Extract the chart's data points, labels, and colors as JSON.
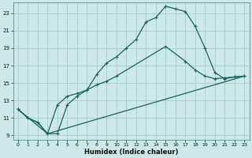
{
  "xlabel": "Humidex (Indice chaleur)",
  "bg_color": "#cce8e8",
  "grid_color": "#aacccc",
  "line_color": "#1a6060",
  "xlim": [
    -0.5,
    23.5
  ],
  "ylim": [
    8.5,
    24.2
  ],
  "yticks": [
    9,
    11,
    13,
    15,
    17,
    19,
    21,
    23
  ],
  "xticks": [
    0,
    1,
    2,
    3,
    4,
    5,
    6,
    7,
    8,
    9,
    10,
    11,
    12,
    13,
    14,
    15,
    16,
    17,
    18,
    19,
    20,
    21,
    22,
    23
  ],
  "line1_x": [
    0,
    1,
    2,
    3,
    4,
    5,
    6,
    7,
    8,
    9,
    10,
    11,
    12,
    13,
    14,
    15,
    16,
    17,
    18,
    19,
    20,
    21,
    22,
    23
  ],
  "line1_y": [
    12,
    11,
    10.5,
    9.2,
    9.2,
    12.5,
    13.5,
    14.2,
    16.0,
    17.3,
    18.0,
    19.0,
    20.0,
    22.0,
    22.5,
    23.8,
    23.5,
    23.2,
    21.5,
    19.0,
    16.2,
    15.5,
    15.7,
    15.8
  ],
  "line2_x": [
    0,
    3,
    23
  ],
  "line2_y": [
    12,
    9.2,
    15.8
  ],
  "line3_x": [
    0,
    1,
    2,
    3,
    4,
    5,
    6,
    7,
    8,
    9,
    10,
    15,
    17,
    18,
    19,
    20,
    21,
    22,
    23
  ],
  "line3_y": [
    12,
    11,
    10.5,
    9.2,
    12.5,
    13.5,
    13.8,
    14.2,
    14.8,
    15.2,
    15.8,
    19.2,
    17.5,
    16.5,
    15.8,
    15.5,
    15.6,
    15.7,
    15.8
  ]
}
